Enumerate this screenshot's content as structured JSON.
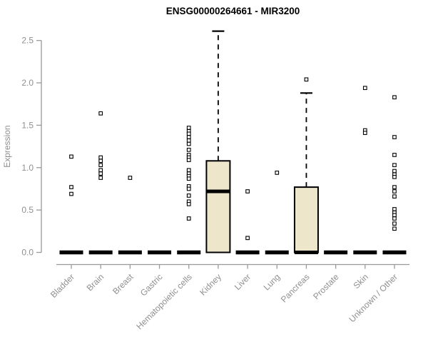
{
  "chart_data": {
    "type": "boxplot",
    "title": "ENSG00000264661 - MIR3200",
    "ylabel": "Expression",
    "xlabel": "",
    "ylim": [
      0,
      2.5
    ],
    "ytick_labels": [
      "0.0",
      "0.5",
      "1.0",
      "1.5",
      "2.0",
      "2.5"
    ],
    "grid": false,
    "legend": "none",
    "categories": [
      "Bladder",
      "Brain",
      "Breast",
      "Gastric",
      "Hematopoietic cells",
      "Kidney",
      "Liver",
      "Lung",
      "Pancreas",
      "Prostate",
      "Skin",
      "Unknown / Other"
    ],
    "series": [
      {
        "name": "Bladder",
        "q1": 0,
        "median": 0,
        "q3": 0,
        "whisker_low": 0,
        "whisker_high": 0,
        "outliers": [
          1.13,
          0.77,
          0.69
        ]
      },
      {
        "name": "Brain",
        "q1": 0,
        "median": 0,
        "q3": 0,
        "whisker_low": 0,
        "whisker_high": 0,
        "outliers": [
          1.64,
          1.12,
          1.08,
          1.03,
          0.97,
          0.93,
          0.88
        ]
      },
      {
        "name": "Breast",
        "q1": 0,
        "median": 0,
        "q3": 0,
        "whisker_low": 0,
        "whisker_high": 0,
        "outliers": [
          0.88
        ]
      },
      {
        "name": "Gastric",
        "q1": 0,
        "median": 0,
        "q3": 0,
        "whisker_low": 0,
        "whisker_high": 0,
        "outliers": []
      },
      {
        "name": "Hematopoietic cells",
        "q1": 0,
        "median": 0,
        "q3": 0,
        "whisker_low": 0,
        "whisker_high": 0,
        "outliers": [
          1.47,
          1.43,
          1.4,
          1.36,
          1.32,
          1.28,
          1.21,
          1.15,
          1.12,
          1.09,
          0.97,
          0.93,
          0.9,
          0.87,
          0.78,
          0.75,
          0.67,
          0.6,
          0.57,
          0.4
        ]
      },
      {
        "name": "Kidney",
        "q1": 0,
        "median": 0.72,
        "q3": 1.08,
        "whisker_low": 0,
        "whisker_high": 2.61,
        "outliers": []
      },
      {
        "name": "Liver",
        "q1": 0,
        "median": 0,
        "q3": 0,
        "whisker_low": 0,
        "whisker_high": 0,
        "outliers": [
          0.72,
          0.17
        ]
      },
      {
        "name": "Lung",
        "q1": 0,
        "median": 0,
        "q3": 0,
        "whisker_low": 0,
        "whisker_high": 0,
        "outliers": [
          0.94
        ]
      },
      {
        "name": "Pancreas",
        "q1": 0,
        "median": 0,
        "q3": 0.77,
        "whisker_low": 0,
        "whisker_high": 1.88,
        "outliers": [
          2.04
        ]
      },
      {
        "name": "Prostate",
        "q1": 0,
        "median": 0,
        "q3": 0,
        "whisker_low": 0,
        "whisker_high": 0,
        "outliers": []
      },
      {
        "name": "Skin",
        "q1": 0,
        "median": 0,
        "q3": 0,
        "whisker_low": 0,
        "whisker_high": 0,
        "outliers": [
          1.94,
          1.44,
          1.41
        ]
      },
      {
        "name": "Unknown / Other",
        "q1": 0,
        "median": 0,
        "q3": 0,
        "whisker_low": 0,
        "whisker_high": 0,
        "outliers": [
          1.83,
          1.36,
          1.15,
          1.03,
          0.96,
          0.92,
          0.89,
          0.77,
          0.72,
          0.66,
          0.51,
          0.47,
          0.44,
          0.4,
          0.34,
          0.28
        ]
      }
    ],
    "colors": {
      "box_fill": "#EDE6CB",
      "box_border": "#000000",
      "median": "#000000",
      "whisker": "#000000",
      "outlier_fill": "#ffffff",
      "outlier_border": "#000000",
      "axis_line": "#999999",
      "axis_text": "#8f8f8f",
      "title_text": "#000000",
      "background": "#ffffff"
    }
  }
}
